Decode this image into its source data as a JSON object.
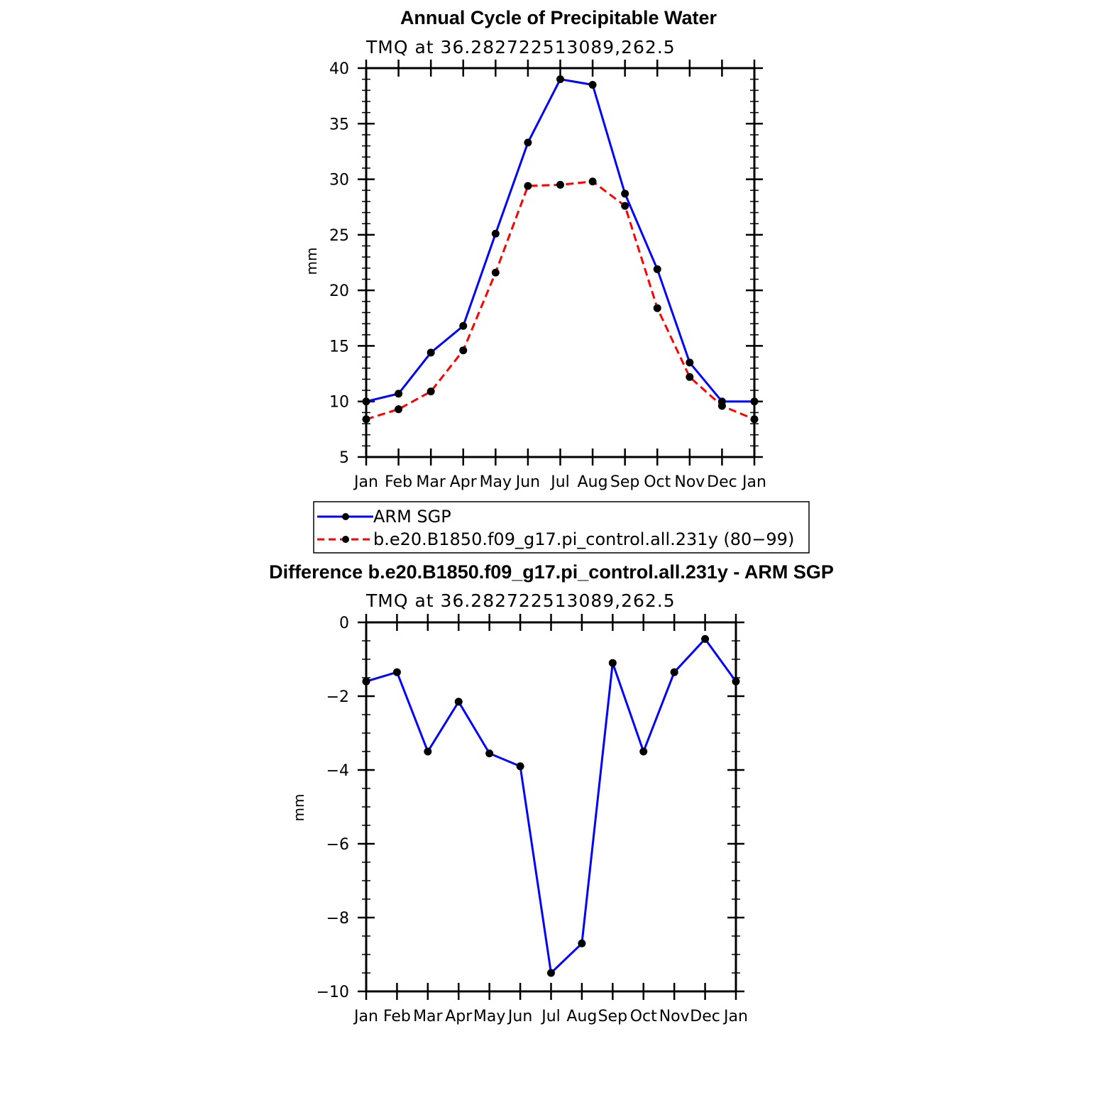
{
  "chart_data": [
    {
      "type": "line",
      "title": "Annual Cycle of Precipitable Water",
      "subtitle": "TMQ at 36.282722513089,262.5",
      "xlabel": "",
      "ylabel": "mm",
      "categories": [
        "Jan",
        "Feb",
        "Mar",
        "Apr",
        "May",
        "Jun",
        "Jul",
        "Aug",
        "Sep",
        "Oct",
        "Nov",
        "Dec",
        "Jan"
      ],
      "ylim": [
        5,
        40
      ],
      "yticks": [
        5,
        10,
        15,
        20,
        25,
        30,
        35,
        40
      ],
      "series": [
        {
          "name": "ARM SGP",
          "color": "#0000ff",
          "dash": "solid",
          "values": [
            10.0,
            10.7,
            14.4,
            16.8,
            25.1,
            33.3,
            39.0,
            38.5,
            28.7,
            21.9,
            13.5,
            10.0,
            10.0
          ]
        },
        {
          "name": "b.e20.B1850.f09_g17.pi_control.all.231y (80−99)",
          "color": "#ff0000",
          "dash": "dashed",
          "values": [
            8.4,
            9.3,
            10.9,
            14.6,
            21.6,
            29.4,
            29.5,
            29.8,
            27.6,
            18.4,
            12.2,
            9.6,
            8.4
          ]
        }
      ],
      "legend": "below"
    },
    {
      "type": "line",
      "title": "Difference b.e20.B1850.f09_g17.pi_control.all.231y - ARM SGP",
      "subtitle": "TMQ at 36.282722513089,262.5",
      "xlabel": "",
      "ylabel": "mm",
      "categories": [
        "Jan",
        "Feb",
        "Mar",
        "Apr",
        "May",
        "Jun",
        "Jul",
        "Aug",
        "Sep",
        "Oct",
        "Nov",
        "Dec",
        "Jan"
      ],
      "ylim": [
        -10,
        0
      ],
      "yticks": [
        0,
        -2,
        -4,
        -6,
        -8,
        -10
      ],
      "ytick_labels": [
        "0",
        "−2",
        "−4",
        "−6",
        "−8",
        "−10"
      ],
      "series": [
        {
          "color": "#0000ff",
          "dash": "solid",
          "values": [
            -1.6,
            -1.35,
            -3.5,
            -2.15,
            -3.55,
            -3.9,
            -9.5,
            -8.7,
            -1.1,
            -3.5,
            -1.35,
            -0.45,
            -1.6
          ]
        }
      ]
    }
  ]
}
